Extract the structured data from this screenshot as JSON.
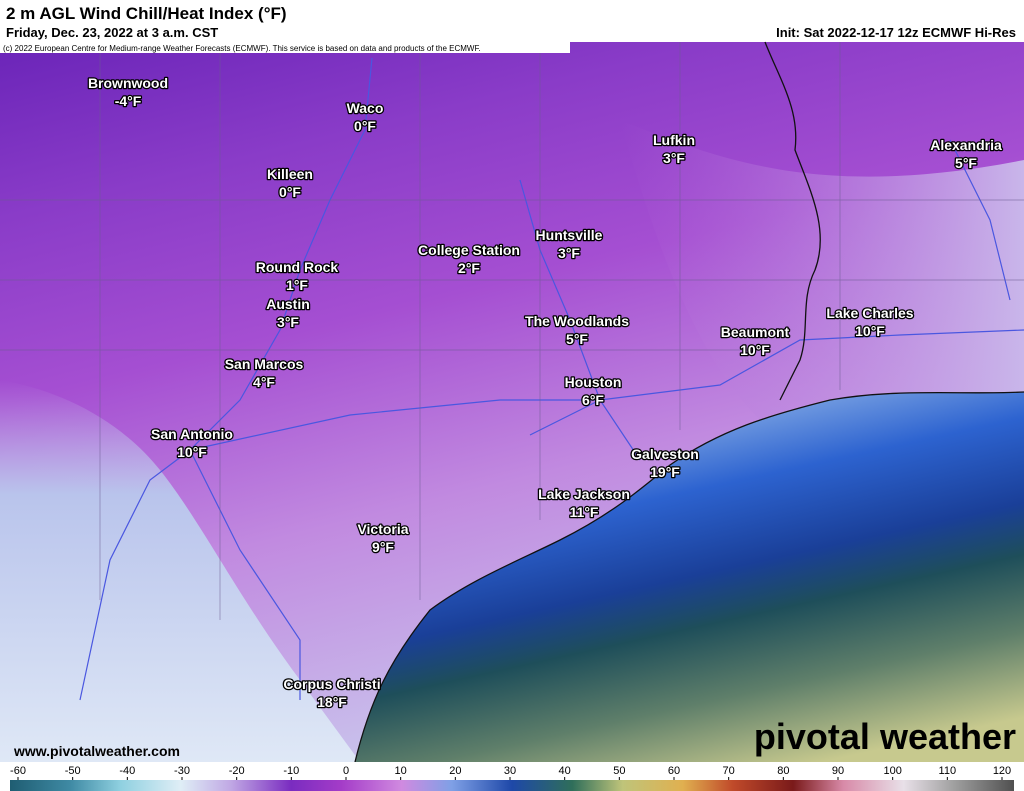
{
  "header": {
    "title": "2 m AGL Wind Chill/Heat Index (°F)",
    "valid": "Friday, Dec. 23, 2022 at 3 a.m. CST",
    "init": "Init: Sat 2022-12-17 12z ECMWF Hi-Res",
    "credit": "(c) 2022 European Centre for Medium-range Weather Forecasts (ECMWF). This service is based on data and products of the ECMWF."
  },
  "cities": [
    {
      "name": "Brownwood",
      "temp": "-4°F"
    },
    {
      "name": "Waco",
      "temp": "0°F"
    },
    {
      "name": "Lufkin",
      "temp": "3°F"
    },
    {
      "name": "Alexandria",
      "temp": "5°F"
    },
    {
      "name": "Killeen",
      "temp": "0°F"
    },
    {
      "name": "Huntsville",
      "temp": "3°F"
    },
    {
      "name": "College Station",
      "temp": "2°F"
    },
    {
      "name": "Round Rock",
      "temp": "1°F"
    },
    {
      "name": "Austin",
      "temp": "3°F"
    },
    {
      "name": "Lake Charles",
      "temp": "10°F"
    },
    {
      "name": "The Woodlands",
      "temp": "5°F"
    },
    {
      "name": "Beaumont",
      "temp": "10°F"
    },
    {
      "name": "San Marcos",
      "temp": "4°F"
    },
    {
      "name": "Houston",
      "temp": "6°F"
    },
    {
      "name": "San Antonio",
      "temp": "10°F"
    },
    {
      "name": "Galveston",
      "temp": "19°F"
    },
    {
      "name": "Lake Jackson",
      "temp": "11°F"
    },
    {
      "name": "Victoria",
      "temp": "9°F"
    },
    {
      "name": "Corpus Christi",
      "temp": "18°F"
    }
  ],
  "footer": {
    "website": "www.pivotalweather.com",
    "logo": "pivotal weather"
  },
  "colorbar": {
    "ticks": [
      -60,
      -50,
      -40,
      -30,
      -20,
      -10,
      0,
      10,
      20,
      30,
      40,
      50,
      60,
      70,
      80,
      90,
      100,
      110,
      120
    ]
  }
}
